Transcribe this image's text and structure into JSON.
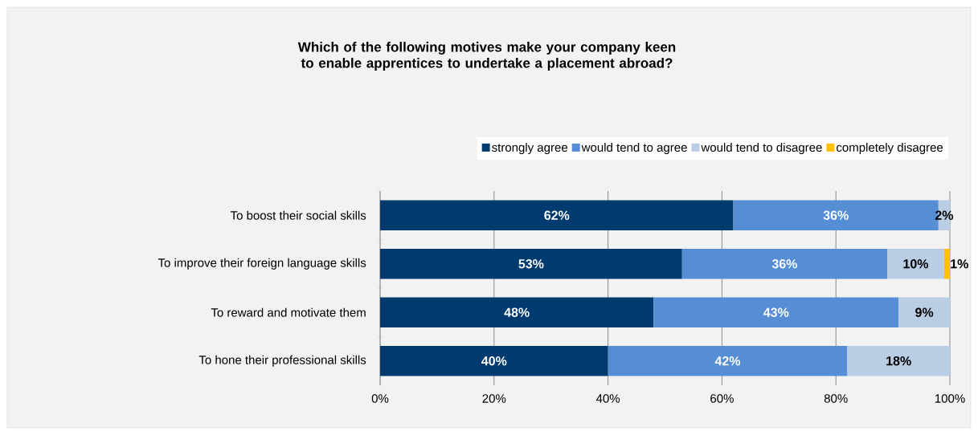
{
  "chart_data": {
    "type": "bar",
    "orientation": "horizontal",
    "stacked": true,
    "title": "Which of the following motives make your company keen to enable apprentices to undertake a placement abroad?",
    "categories": [
      "To boost their social skills",
      "To improve their foreign language skills",
      "To reward and motivate them",
      "To hone their professional skills"
    ],
    "series": [
      {
        "name": "strongly agree",
        "color": "#003b70",
        "values": [
          62,
          53,
          48,
          40
        ],
        "value_labels": [
          "62%",
          "53%",
          "48%",
          "40%"
        ]
      },
      {
        "name": "would tend to agree",
        "color": "#558ed5",
        "values": [
          36,
          36,
          43,
          42
        ],
        "value_labels": [
          "36%",
          "36%",
          "43%",
          "42%"
        ]
      },
      {
        "name": "would tend to disagree",
        "color": "#b9cde5",
        "values": [
          2,
          10,
          9,
          18
        ],
        "value_labels": [
          "2%",
          "10%",
          "9%",
          "18%"
        ]
      },
      {
        "name": "completely disagree",
        "color": "#ffc000",
        "values": [
          0,
          1,
          0,
          0
        ],
        "value_labels": [
          null,
          "1%",
          null,
          null
        ]
      }
    ],
    "xlim": [
      0,
      100
    ],
    "xticks": [
      {
        "value": 0,
        "label": "0%"
      },
      {
        "value": 20,
        "label": "20%"
      },
      {
        "value": 40,
        "label": "40%"
      },
      {
        "value": 60,
        "label": "60%"
      },
      {
        "value": 80,
        "label": "80%"
      },
      {
        "value": 100,
        "label": "100%"
      }
    ],
    "grid": "x",
    "legend": "top"
  }
}
